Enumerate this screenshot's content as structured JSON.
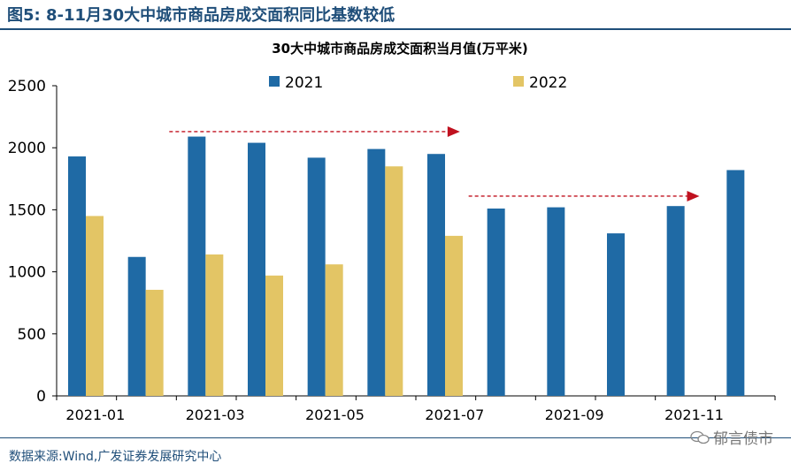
{
  "figure_label": "图5:",
  "figure_title": "8-11月30大中城市商品房成交面积同比基数较低",
  "source": "数据来源:Wind,广发证券发展研究中心",
  "watermark": "郁言债市",
  "colors": {
    "s2021": "#1f6aa5",
    "s2022": "#e3c565",
    "arrow": "#c0111f",
    "title": "#1f4e79"
  },
  "chart_data": {
    "type": "bar",
    "title": "30大中城市商品房成交面积当月值(万平米)",
    "categories": [
      "2021-01",
      "2021-02",
      "2021-03",
      "2021-04",
      "2021-05",
      "2021-06",
      "2021-07",
      "2021-08",
      "2021-09",
      "2021-10",
      "2021-11",
      "2021-12"
    ],
    "tick_labels": [
      "2021-01",
      "",
      "2021-03",
      "",
      "2021-05",
      "",
      "2021-07",
      "",
      "2021-09",
      "",
      "2021-11",
      ""
    ],
    "series": [
      {
        "name": "2021",
        "values": [
          1930,
          1120,
          2090,
          2040,
          1920,
          1990,
          1950,
          1510,
          1520,
          1310,
          1530,
          1820
        ]
      },
      {
        "name": "2022",
        "values": [
          1450,
          855,
          1140,
          970,
          1060,
          1850,
          1290,
          null,
          null,
          null,
          null,
          null
        ]
      }
    ],
    "ylim": [
      0,
      2500
    ],
    "yticks": [
      0,
      500,
      1000,
      1500,
      2000,
      2500
    ],
    "legend_position": "top",
    "grid": false,
    "annotations": [
      {
        "type": "arrow",
        "from": "2021-03",
        "to": "2021-07",
        "level": 2130
      },
      {
        "type": "arrow",
        "from": "2021-08",
        "to": "2021-11",
        "level": 1610
      }
    ]
  }
}
